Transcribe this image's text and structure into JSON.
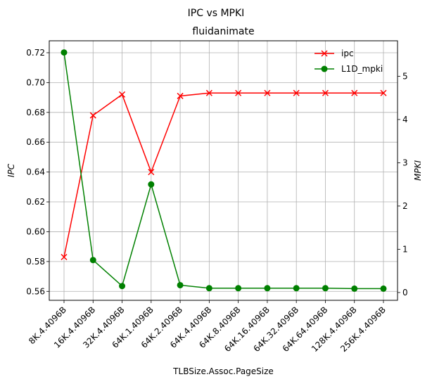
{
  "chart_data": {
    "type": "line",
    "suptitle": "IPC vs MPKI",
    "title": "fluidanimate",
    "xlabel": "TLBSize.Assoc.PageSize",
    "ylabel_left": "IPC",
    "ylabel_right": "MPKI",
    "categories": [
      "8K.4.4096B",
      "16K.4.4096B",
      "32K.4.4096B",
      "64K.1.4096B",
      "64K.2.4096B",
      "64K.4.4096B",
      "64K.8.4096B",
      "64K.16.4096B",
      "64K.32.4096B",
      "64K.64.4096B",
      "128K.4.4096B",
      "256K.4.4096B"
    ],
    "left_axis": {
      "ylim": [
        0.554,
        0.728
      ],
      "ticks": [
        0.56,
        0.58,
        0.6,
        0.62,
        0.64,
        0.66,
        0.68,
        0.7,
        0.72
      ],
      "tick_labels": [
        "0.56",
        "0.58",
        "0.60",
        "0.62",
        "0.64",
        "0.66",
        "0.68",
        "0.70",
        "0.72"
      ]
    },
    "right_axis": {
      "ylim": [
        -0.18,
        5.82
      ],
      "ticks": [
        0,
        1,
        2,
        3,
        4,
        5
      ],
      "tick_labels": [
        "0",
        "1",
        "2",
        "3",
        "4",
        "5"
      ]
    },
    "grid": true,
    "legend_position": "top-right",
    "series": [
      {
        "name": "ipc",
        "axis": "left",
        "color": "#ff0000",
        "marker": "x",
        "values": [
          0.583,
          0.678,
          0.692,
          0.64,
          0.691,
          0.693,
          0.693,
          0.693,
          0.693,
          0.693,
          0.693,
          0.693
        ]
      },
      {
        "name": "L1D_mpki",
        "axis": "right",
        "color": "#008000",
        "marker": "o",
        "values": [
          5.55,
          0.75,
          0.15,
          2.5,
          0.17,
          0.1,
          0.1,
          0.1,
          0.1,
          0.1,
          0.09,
          0.09
        ]
      }
    ]
  }
}
